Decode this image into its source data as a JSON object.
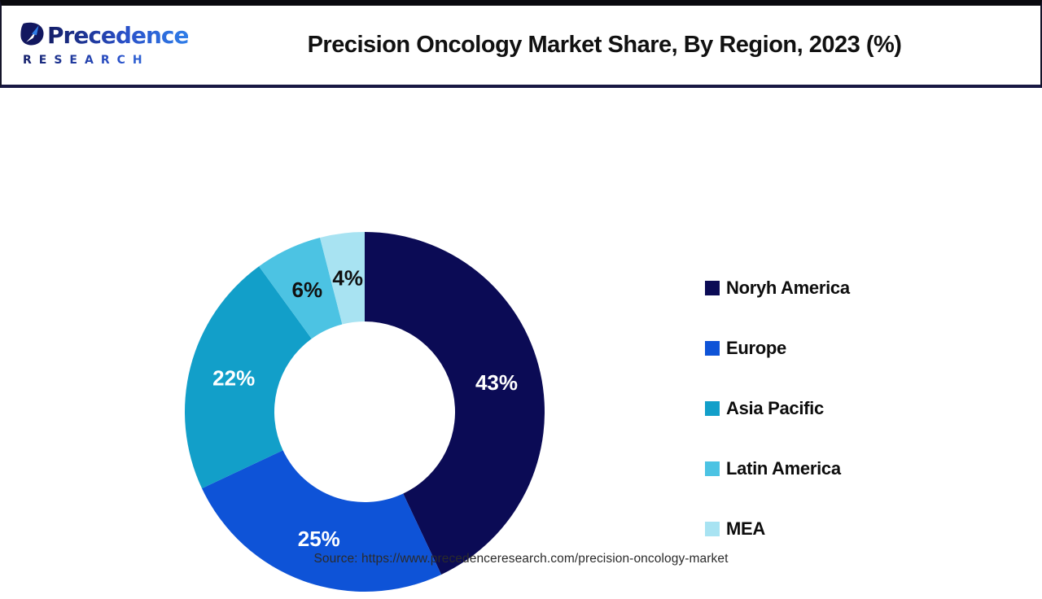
{
  "header": {
    "logo": {
      "brand": "Precedence",
      "sub": "RESEARCH"
    },
    "title": "Precision Oncology Market Share, By Region, 2023 (%)"
  },
  "chart_data": {
    "type": "pie",
    "subtype": "donut",
    "title": "Precision Oncology Market Share, By Region, 2023 (%)",
    "categories": [
      "Noryh America",
      "Europe",
      "Asia Pacific",
      "Latin America",
      "MEA"
    ],
    "values": [
      43,
      25,
      22,
      6,
      4
    ],
    "unit": "%",
    "colors": [
      "#0b0b55",
      "#0e53d7",
      "#129fc9",
      "#4cc3e3",
      "#a8e3f2"
    ],
    "label_colors": [
      "#ffffff",
      "#ffffff",
      "#ffffff",
      "#111111",
      "#111111"
    ],
    "start_angle": 0,
    "direction": "clockwise",
    "inner_radius_ratio": 0.5,
    "legend_position": "right",
    "grid": false
  },
  "footer": {
    "source": "Source: https://www.precedenceresearch.com/precision-oncology-market"
  }
}
